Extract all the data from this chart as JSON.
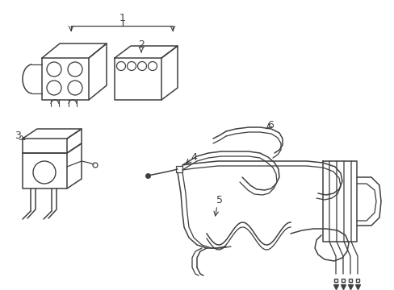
{
  "bg_color": "#ffffff",
  "line_color": "#404040",
  "label_color": "#000000",
  "figsize": [
    4.89,
    3.6
  ],
  "dpi": 100,
  "lw": 1.1
}
